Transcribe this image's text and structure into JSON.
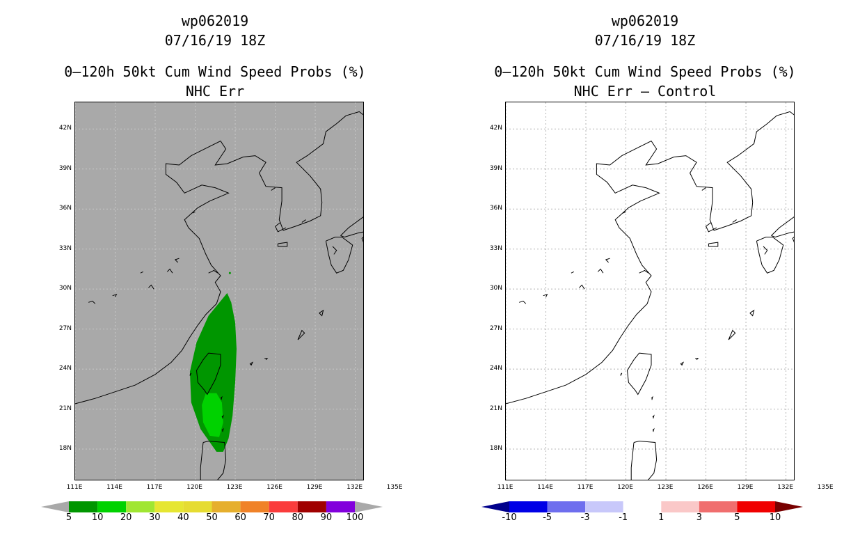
{
  "left_panel": {
    "storm_id": "wp062019",
    "datetime": "07/16/19 18Z",
    "product": "0–120h 50kt Cum Wind Speed Probs (%)",
    "subtitle": "NHC Err",
    "map_background": "#a9a9a9",
    "colorbar": {
      "colors": [
        "#009600",
        "#00d200",
        "#a0e632",
        "#e6e632",
        "#e6dc32",
        "#e6af2d",
        "#f08228",
        "#fa3c3c",
        "#a00000",
        "#8200dc"
      ],
      "labels": [
        "5",
        "10",
        "20",
        "30",
        "40",
        "50",
        "60",
        "70",
        "80",
        "90",
        "100"
      ],
      "under_color": "#a9a9a9",
      "over_color": "#a9a9a9"
    }
  },
  "right_panel": {
    "storm_id": "wp062019",
    "datetime": "07/16/19 18Z",
    "product": "0–120h 50kt Cum Wind Speed Probs (%)",
    "subtitle": "NHC Err – Control",
    "map_background": "#ffffff",
    "colorbar": {
      "colors": [
        "#0000e6",
        "#6e6eee",
        "#c8c8fa",
        "#ffffff",
        "#fac8c8",
        "#f06e6e",
        "#f00000"
      ],
      "labels": [
        "-10",
        "-5",
        "-3",
        "-1",
        "1",
        "3",
        "5",
        "10"
      ],
      "under_color": "#00008c",
      "over_color": "#780000"
    }
  },
  "axes": {
    "lat_labels": [
      "42N",
      "39N",
      "36N",
      "33N",
      "30N",
      "27N",
      "24N",
      "21N",
      "18N"
    ],
    "lon_labels": [
      "111E",
      "114E",
      "117E",
      "120E",
      "123E",
      "126E",
      "129E",
      "132E",
      "135E"
    ],
    "lat_values": [
      42,
      39,
      36,
      33,
      30,
      27,
      24,
      21,
      18
    ],
    "lon_values": [
      111,
      114,
      117,
      120,
      123,
      126,
      129,
      132,
      135
    ],
    "lat_range": [
      15.6,
      44.0
    ],
    "lon_range": [
      111,
      132.7
    ]
  },
  "probability_field": {
    "contour_5_percent_color": "#009600",
    "contour_10_percent_color": "#00d200",
    "contour_5_percent_outline": [
      [
        122.4,
        29.7
      ],
      [
        122.7,
        29.0
      ],
      [
        123.0,
        27.5
      ],
      [
        123.1,
        25.5
      ],
      [
        123.0,
        23.0
      ],
      [
        122.8,
        20.5
      ],
      [
        122.5,
        18.8
      ],
      [
        122.1,
        17.8
      ],
      [
        121.6,
        17.8
      ],
      [
        120.4,
        19.5
      ],
      [
        119.7,
        21.5
      ],
      [
        119.6,
        23.8
      ],
      [
        120.1,
        26.0
      ],
      [
        121.0,
        28.0
      ],
      [
        122.4,
        29.7
      ]
    ],
    "contour_10_percent_outline": [
      [
        120.8,
        22.2
      ],
      [
        121.6,
        22.2
      ],
      [
        122.0,
        21.5
      ],
      [
        122.1,
        20.0
      ],
      [
        121.8,
        18.9
      ],
      [
        121.1,
        19.0
      ],
      [
        120.6,
        20.0
      ],
      [
        120.5,
        21.3
      ],
      [
        120.8,
        22.2
      ]
    ]
  }
}
